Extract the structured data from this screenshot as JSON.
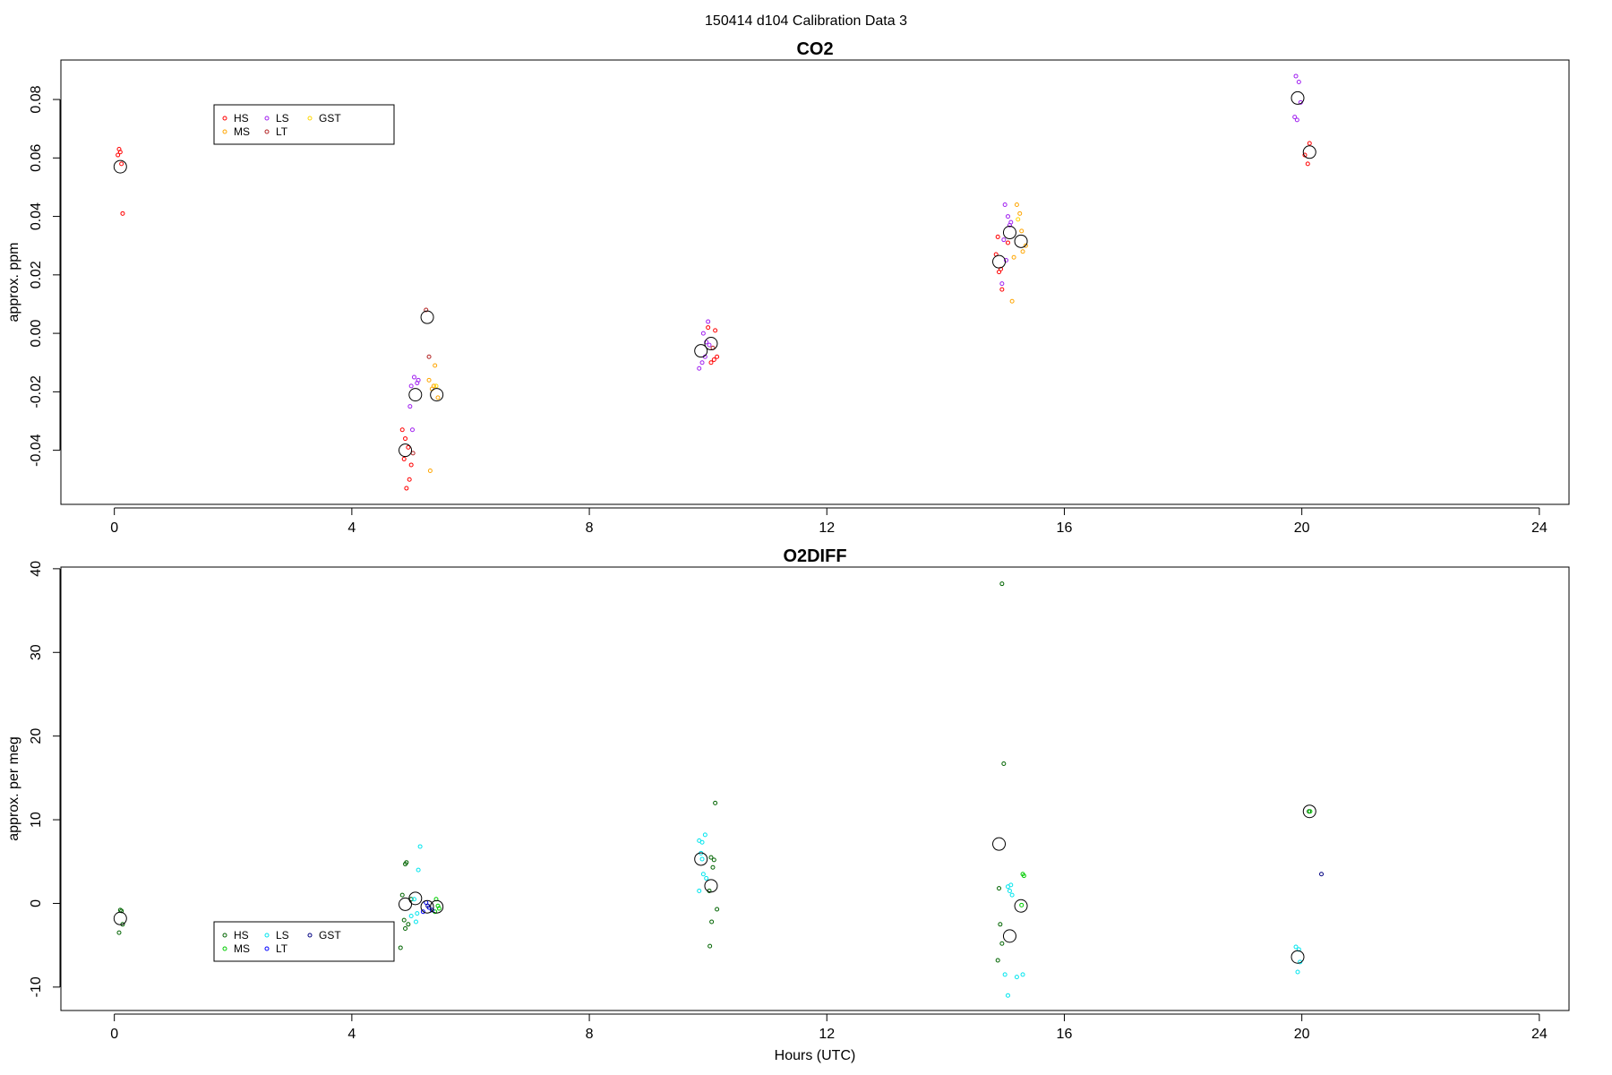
{
  "figure_title": "150414   d104   Calibration Data 3",
  "xlabel": "Hours (UTC)",
  "chart_data": [
    {
      "type": "scatter",
      "title": "CO2",
      "xlabel": "",
      "ylabel": "approx. ppm",
      "xlim": [
        -0.9,
        24.5
      ],
      "ylim": [
        -0.0585,
        0.0935
      ],
      "xticks": [
        0,
        4,
        8,
        12,
        16,
        20,
        24
      ],
      "yticks": [
        -0.04,
        -0.02,
        0.0,
        0.02,
        0.04,
        0.06,
        0.08
      ],
      "ytick_labels": [
        "-0.04",
        "-0.02",
        "0.00",
        "0.02",
        "0.04",
        "0.06",
        "0.08"
      ],
      "legend_position": "top-left",
      "legend": [
        {
          "name": "HS",
          "color": "#ff0000"
        },
        {
          "name": "MS",
          "color": "#ffa500"
        },
        {
          "name": "LS",
          "color": "#a020f0"
        },
        {
          "name": "LT",
          "color": "#b22222"
        },
        {
          "name": "GST",
          "color": "#ffd700"
        }
      ],
      "series": [
        {
          "name": "HS",
          "color": "#ff0000",
          "points": [
            [
              0.08,
              0.063
            ],
            [
              0.1,
              0.062
            ],
            [
              0.12,
              0.058
            ],
            [
              0.06,
              0.061
            ],
            [
              0.14,
              0.041
            ],
            [
              4.85,
              -0.033
            ],
            [
              4.9,
              -0.036
            ],
            [
              4.95,
              -0.039
            ],
            [
              4.88,
              -0.043
            ],
            [
              5.0,
              -0.045
            ],
            [
              4.97,
              -0.05
            ],
            [
              4.92,
              -0.053
            ],
            [
              14.85,
              0.027
            ],
            [
              14.9,
              0.021
            ],
            [
              14.93,
              0.022
            ],
            [
              14.95,
              0.015
            ],
            [
              14.88,
              0.033
            ],
            [
              15.05,
              0.031
            ],
            [
              20.13,
              0.065
            ],
            [
              20.1,
              0.058
            ],
            [
              20.05,
              0.061
            ],
            [
              10.15,
              -0.008
            ],
            [
              10.1,
              -0.009
            ],
            [
              10.05,
              -0.01
            ],
            [
              10.12,
              0.001
            ],
            [
              10.0,
              0.002
            ]
          ]
        },
        {
          "name": "MS",
          "color": "#ffa500",
          "points": [
            [
              5.3,
              -0.016
            ],
            [
              5.35,
              -0.019
            ],
            [
              5.4,
              -0.011
            ],
            [
              5.38,
              -0.018
            ],
            [
              5.32,
              -0.047
            ],
            [
              5.45,
              -0.022
            ],
            [
              15.2,
              0.044
            ],
            [
              15.25,
              0.041
            ],
            [
              15.15,
              0.026
            ],
            [
              15.3,
              0.028
            ],
            [
              15.28,
              0.035
            ],
            [
              15.12,
              0.011
            ],
            [
              15.35,
              0.03
            ]
          ]
        },
        {
          "name": "LS",
          "color": "#a020f0",
          "points": [
            [
              5.05,
              -0.015
            ],
            [
              5.1,
              -0.017
            ],
            [
              5.0,
              -0.018
            ],
            [
              5.12,
              -0.016
            ],
            [
              4.98,
              -0.025
            ],
            [
              5.02,
              -0.033
            ],
            [
              9.85,
              -0.012
            ],
            [
              9.9,
              -0.01
            ],
            [
              9.95,
              -0.008
            ],
            [
              10.0,
              0.004
            ],
            [
              9.92,
              0.0
            ],
            [
              9.97,
              -0.003
            ],
            [
              10.02,
              -0.004
            ],
            [
              15.0,
              0.044
            ],
            [
              15.05,
              0.04
            ],
            [
              15.1,
              0.038
            ],
            [
              14.98,
              0.032
            ],
            [
              15.08,
              0.037
            ],
            [
              19.9,
              0.088
            ],
            [
              19.95,
              0.086
            ],
            [
              19.88,
              0.074
            ],
            [
              19.92,
              0.073
            ],
            [
              19.98,
              0.079
            ],
            [
              14.95,
              0.017
            ],
            [
              15.02,
              0.025
            ]
          ]
        },
        {
          "name": "LT",
          "color": "#b22222",
          "points": [
            [
              5.25,
              0.008
            ],
            [
              5.3,
              -0.008
            ],
            [
              5.03,
              -0.041
            ],
            [
              10.08,
              -0.005
            ]
          ]
        },
        {
          "name": "GST",
          "color": "#ffd700",
          "points": [
            [
              5.42,
              -0.018
            ],
            [
              15.22,
              0.039
            ]
          ]
        },
        {
          "name": "mean",
          "color": "#000000",
          "big": true,
          "points": [
            [
              0.1,
              0.057
            ],
            [
              4.9,
              -0.04
            ],
            [
              5.07,
              -0.021
            ],
            [
              5.27,
              0.0055
            ],
            [
              5.43,
              -0.021
            ],
            [
              9.88,
              -0.006
            ],
            [
              10.05,
              -0.0035
            ],
            [
              14.9,
              0.0245
            ],
            [
              15.08,
              0.0345
            ],
            [
              15.27,
              0.0315
            ],
            [
              19.93,
              0.0805
            ],
            [
              20.13,
              0.062
            ]
          ]
        }
      ]
    },
    {
      "type": "scatter",
      "title": "O2DIFF",
      "xlabel": "Hours (UTC)",
      "ylabel": "approx. per meg",
      "xlim": [
        -0.9,
        24.5
      ],
      "ylim": [
        -12.8,
        40.2
      ],
      "xticks": [
        0,
        4,
        8,
        12,
        16,
        20,
        24
      ],
      "yticks": [
        -10,
        0,
        10,
        20,
        30,
        40
      ],
      "ytick_labels": [
        "-10",
        "0",
        "10",
        "20",
        "30",
        "40"
      ],
      "legend_position": "bottom-left",
      "legend": [
        {
          "name": "HS",
          "color": "#006400"
        },
        {
          "name": "MS",
          "color": "#00cc00"
        },
        {
          "name": "LS",
          "color": "#00e5ee"
        },
        {
          "name": "LT",
          "color": "#0000ff"
        },
        {
          "name": "GST",
          "color": "#000080"
        }
      ],
      "series": [
        {
          "name": "HS",
          "color": "#006400",
          "points": [
            [
              0.1,
              -0.8
            ],
            [
              0.12,
              -0.9
            ],
            [
              0.08,
              -3.5
            ],
            [
              0.14,
              -2.5
            ],
            [
              4.85,
              1.0
            ],
            [
              4.9,
              4.7
            ],
            [
              4.92,
              4.9
            ],
            [
              4.88,
              -2.0
            ],
            [
              4.95,
              -2.5
            ],
            [
              4.9,
              -3.0
            ],
            [
              4.82,
              -5.3
            ],
            [
              10.05,
              5.5
            ],
            [
              10.1,
              5.2
            ],
            [
              10.12,
              12.0
            ],
            [
              10.08,
              4.3
            ],
            [
              10.02,
              1.5
            ],
            [
              10.06,
              -2.2
            ],
            [
              10.15,
              -0.7
            ],
            [
              10.03,
              -5.1
            ],
            [
              14.95,
              38.2
            ],
            [
              14.98,
              16.7
            ],
            [
              14.9,
              1.8
            ],
            [
              14.92,
              -2.5
            ],
            [
              14.95,
              -4.8
            ],
            [
              14.88,
              -6.8
            ],
            [
              20.12,
              11.0
            ],
            [
              5.0,
              0.5
            ]
          ]
        },
        {
          "name": "MS",
          "color": "#00cc00",
          "points": [
            [
              5.42,
              0.5
            ],
            [
              5.45,
              -0.3
            ],
            [
              5.4,
              -1.0
            ],
            [
              5.47,
              -0.6
            ],
            [
              15.3,
              3.5
            ],
            [
              15.32,
              3.3
            ],
            [
              15.28,
              -0.2
            ],
            [
              20.14,
              11.0
            ]
          ]
        },
        {
          "name": "LS",
          "color": "#00e5ee",
          "points": [
            [
              5.05,
              0.5
            ],
            [
              5.1,
              -1.2
            ],
            [
              5.0,
              -1.5
            ],
            [
              5.15,
              6.8
            ],
            [
              5.12,
              4.0
            ],
            [
              5.08,
              -2.2
            ],
            [
              9.85,
              7.5
            ],
            [
              9.9,
              7.3
            ],
            [
              9.95,
              8.2
            ],
            [
              9.88,
              6.0
            ],
            [
              9.92,
              3.5
            ],
            [
              9.97,
              3.0
            ],
            [
              9.85,
              1.5
            ],
            [
              9.9,
              5.3
            ],
            [
              15.05,
              2.0
            ],
            [
              15.1,
              2.2
            ],
            [
              15.08,
              1.5
            ],
            [
              15.12,
              1.0
            ],
            [
              15.0,
              -8.5
            ],
            [
              15.2,
              -8.8
            ],
            [
              15.3,
              -8.5
            ],
            [
              15.05,
              -11.0
            ],
            [
              19.9,
              -5.2
            ],
            [
              19.95,
              -5.5
            ],
            [
              19.93,
              -8.2
            ],
            [
              19.97,
              -7.0
            ]
          ]
        },
        {
          "name": "LT",
          "color": "#0000ff",
          "points": [
            [
              5.25,
              0.1
            ],
            [
              5.3,
              -0.5
            ],
            [
              5.35,
              -0.8
            ],
            [
              5.2,
              -1.0
            ]
          ]
        },
        {
          "name": "GST",
          "color": "#000080",
          "points": [
            [
              20.33,
              3.5
            ],
            [
              5.28,
              -0.3
            ]
          ]
        },
        {
          "name": "mean",
          "color": "#000000",
          "big": true,
          "points": [
            [
              0.1,
              -1.8
            ],
            [
              4.9,
              -0.1
            ],
            [
              5.07,
              0.6
            ],
            [
              5.27,
              -0.4
            ],
            [
              5.43,
              -0.4
            ],
            [
              9.88,
              5.3
            ],
            [
              10.05,
              2.1
            ],
            [
              14.9,
              7.1
            ],
            [
              15.08,
              -3.9
            ],
            [
              15.27,
              -0.3
            ],
            [
              19.93,
              -6.4
            ],
            [
              20.13,
              11.0
            ]
          ]
        }
      ]
    }
  ]
}
